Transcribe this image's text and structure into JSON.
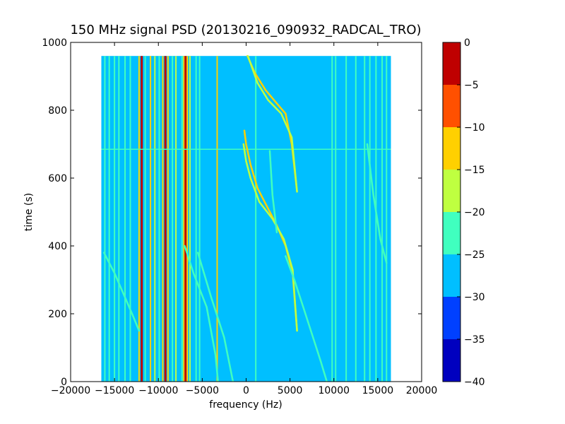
{
  "chart_data": {
    "type": "heatmap",
    "title": "150 MHz signal PSD (20130216_090932_RADCAL_TRO)",
    "xlabel": "frequency (Hz)",
    "ylabel": "time (s)",
    "xlim": [
      -20000,
      20000
    ],
    "ylim": [
      0,
      1000
    ],
    "x_ticks": [
      -20000,
      -15000,
      -10000,
      -5000,
      0,
      5000,
      10000,
      15000,
      20000
    ],
    "x_tick_labels": [
      "−20000",
      "−15000",
      "−10000",
      "−5000",
      "0",
      "5000",
      "10000",
      "15000",
      "20000"
    ],
    "y_ticks": [
      0,
      200,
      400,
      600,
      800,
      1000
    ],
    "y_tick_labels": [
      "0",
      "200",
      "400",
      "600",
      "800",
      "1000"
    ],
    "data_extent": {
      "x": [
        -16500,
        16500
      ],
      "y": [
        0,
        960
      ]
    },
    "background_level_db": -27.5,
    "colorbar": {
      "range": [
        -40,
        0
      ],
      "levels": [
        {
          "low": -40,
          "high": -35,
          "color": "#0000bf"
        },
        {
          "low": -35,
          "high": -30,
          "color": "#0040ff"
        },
        {
          "low": -30,
          "high": -25,
          "color": "#00bfff"
        },
        {
          "low": -25,
          "high": -20,
          "color": "#40ffbf"
        },
        {
          "low": -20,
          "high": -15,
          "color": "#bfff40"
        },
        {
          "low": -15,
          "high": -10,
          "color": "#ffd000"
        },
        {
          "low": -10,
          "high": -5,
          "color": "#ff5000"
        },
        {
          "low": -5,
          "high": 0,
          "color": "#bf0000"
        }
      ],
      "ticks": [
        0,
        -5,
        -10,
        -15,
        -20,
        -25,
        -30,
        -35,
        -40
      ],
      "tick_labels": [
        "0",
        "−5",
        "−10",
        "−15",
        "−20",
        "−25",
        "−30",
        "−35",
        "−40"
      ]
    },
    "vertical_lines": [
      {
        "x": -16100,
        "level_db": -22
      },
      {
        "x": -15600,
        "level_db": -22
      },
      {
        "x": -15000,
        "level_db": -22
      },
      {
        "x": -14500,
        "level_db": -22
      },
      {
        "x": -13800,
        "level_db": -22
      },
      {
        "x": -13200,
        "level_db": -22
      },
      {
        "x": -12200,
        "level_db": -12
      },
      {
        "x": -11900,
        "level_db": -3
      },
      {
        "x": -11500,
        "level_db": -22
      },
      {
        "x": -10900,
        "level_db": -12
      },
      {
        "x": -10400,
        "level_db": -17
      },
      {
        "x": -9900,
        "level_db": -22
      },
      {
        "x": -9500,
        "level_db": -12
      },
      {
        "x": -9200,
        "level_db": -3
      },
      {
        "x": -8900,
        "level_db": -12
      },
      {
        "x": -8400,
        "level_db": -22
      },
      {
        "x": -8000,
        "level_db": -17
      },
      {
        "x": -7300,
        "level_db": -22
      },
      {
        "x": -7100,
        "level_db": -12
      },
      {
        "x": -6900,
        "level_db": -3
      },
      {
        "x": -6700,
        "level_db": -12
      },
      {
        "x": -6400,
        "level_db": -17
      },
      {
        "x": -5700,
        "level_db": -22
      },
      {
        "x": -5300,
        "level_db": -22
      },
      {
        "x": -3300,
        "level_db": -12
      },
      {
        "x": 1100,
        "level_db": -22
      },
      {
        "x": 9800,
        "level_db": -22
      },
      {
        "x": 10200,
        "level_db": -22
      },
      {
        "x": 11400,
        "level_db": -22
      },
      {
        "x": 12500,
        "level_db": -22
      },
      {
        "x": 13500,
        "level_db": -22
      },
      {
        "x": 14100,
        "level_db": -22
      },
      {
        "x": 14800,
        "level_db": -22
      },
      {
        "x": 15500,
        "level_db": -22
      },
      {
        "x": 16000,
        "level_db": -22
      }
    ],
    "tracks": [
      {
        "level_db": -12,
        "points": [
          [
            150,
            960
          ],
          [
            1000,
            910
          ],
          [
            2200,
            860
          ],
          [
            3500,
            820
          ],
          [
            4500,
            790
          ],
          [
            5200,
            700
          ],
          [
            5800,
            560
          ]
        ]
      },
      {
        "level_db": -17,
        "points": [
          [
            200,
            960
          ],
          [
            1300,
            880
          ],
          [
            2500,
            830
          ],
          [
            4000,
            790
          ],
          [
            5200,
            720
          ],
          [
            5800,
            560
          ]
        ]
      },
      {
        "level_db": -12,
        "points": [
          [
            -200,
            740
          ],
          [
            0,
            700
          ],
          [
            500,
            640
          ],
          [
            1300,
            570
          ],
          [
            2500,
            510
          ],
          [
            3500,
            460
          ],
          [
            4500,
            400
          ],
          [
            5300,
            320
          ],
          [
            5800,
            150
          ]
        ]
      },
      {
        "level_db": -17,
        "points": [
          [
            -300,
            700
          ],
          [
            0,
            650
          ],
          [
            500,
            600
          ],
          [
            1500,
            530
          ],
          [
            3000,
            480
          ],
          [
            4300,
            420
          ],
          [
            5300,
            330
          ],
          [
            5800,
            150
          ]
        ]
      },
      {
        "level_db": -22,
        "points": [
          [
            4500,
            370
          ],
          [
            5500,
            300
          ],
          [
            6500,
            220
          ],
          [
            7500,
            140
          ],
          [
            8500,
            60
          ],
          [
            9200,
            0
          ]
        ]
      },
      {
        "level_db": -22,
        "points": [
          [
            -16200,
            380
          ],
          [
            -15000,
            320
          ],
          [
            -14000,
            260
          ],
          [
            -13000,
            200
          ],
          [
            -12200,
            150
          ]
        ]
      },
      {
        "level_db": -22,
        "points": [
          [
            -7000,
            400
          ],
          [
            -6000,
            320
          ],
          [
            -4500,
            220
          ],
          [
            -3500,
            80
          ],
          [
            -3200,
            0
          ]
        ]
      },
      {
        "level_db": -22,
        "points": [
          [
            -5500,
            380
          ],
          [
            -4000,
            250
          ],
          [
            -2500,
            130
          ],
          [
            -1500,
            0
          ]
        ]
      },
      {
        "level_db": -22,
        "points": [
          [
            2700,
            680
          ],
          [
            3000,
            550
          ],
          [
            3500,
            440
          ]
        ]
      },
      {
        "level_db": -22,
        "points": [
          [
            13800,
            700
          ],
          [
            14500,
            550
          ],
          [
            15300,
            420
          ],
          [
            16000,
            350
          ]
        ]
      }
    ],
    "horizontal_lines": [
      {
        "y": 685,
        "level_db": -22
      }
    ]
  }
}
